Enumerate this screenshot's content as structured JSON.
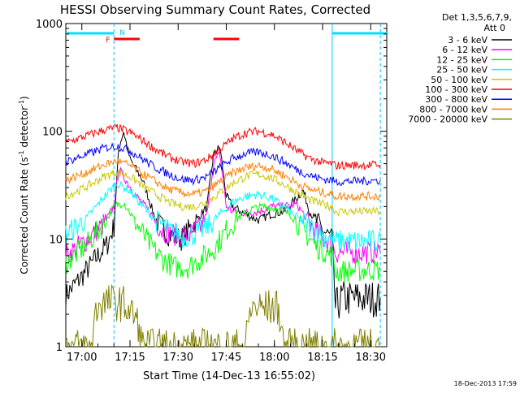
{
  "chart_data": {
    "type": "line",
    "title": "HESSI Observing Summary Count Rates, Corrected",
    "xlabel": "Start Time (14-Dec-13 16:55:02)",
    "ylabel": "Corrected Count Rate (s⁻¹ detector⁻¹)",
    "ylabel_parts": {
      "main": "Corrected Count Rate (s",
      "exp1": "-1",
      "mid": " detector",
      "exp2": "-1",
      "end": ")"
    },
    "y_scale": "log",
    "ylim": [
      1,
      1000
    ],
    "xlim_minutes": [
      0,
      100
    ],
    "x_tick_labels": [
      "17:00",
      "17:15",
      "17:30",
      "17:45",
      "18:00",
      "18:15",
      "18:30"
    ],
    "x_tick_minutes": [
      5,
      20,
      35,
      50,
      65,
      80,
      95
    ],
    "y_tick_labels": [
      "1",
      "10",
      "100",
      "1000"
    ],
    "y_tick_values": [
      1,
      10,
      100,
      1000
    ],
    "legend_header": [
      "Det 1,3,5,6,7,9,",
      "Att 0"
    ],
    "legend_position": "right",
    "timestamp": "18-Dec-2013 17:59",
    "flag_labels": {
      "F": "F",
      "N": "N"
    },
    "flag_bars": {
      "cyan": [
        [
          0,
          15
        ],
        [
          83,
          100
        ]
      ],
      "red": [
        [
          15,
          23
        ],
        [
          46,
          54
        ]
      ]
    },
    "vertical_markers_minutes": [
      15,
      83,
      98
    ],
    "series": [
      {
        "name": "3 - 6 keV",
        "color": "#000000",
        "points": [
          [
            0,
            3
          ],
          [
            5,
            4.5
          ],
          [
            10,
            7
          ],
          [
            13,
            9
          ],
          [
            15,
            13
          ],
          [
            16.5,
            70
          ],
          [
            18,
            100
          ],
          [
            20,
            55
          ],
          [
            24,
            35
          ],
          [
            28,
            15
          ],
          [
            32,
            11
          ],
          [
            36,
            10
          ],
          [
            40,
            14
          ],
          [
            44,
            20
          ],
          [
            46,
            60
          ],
          [
            48,
            72
          ],
          [
            50,
            25
          ],
          [
            52,
            20
          ],
          [
            56,
            17
          ],
          [
            60,
            15
          ],
          [
            64,
            17
          ],
          [
            68,
            18
          ],
          [
            72,
            24
          ],
          [
            74,
            28
          ],
          [
            76,
            18
          ],
          [
            80,
            12
          ],
          [
            83,
            10
          ],
          [
            84,
            2.3
          ],
          [
            86,
            2.8
          ],
          [
            98,
            2.8
          ]
        ]
      },
      {
        "name": "6 - 12 keV",
        "color": "#ff00ff",
        "points": [
          [
            0,
            7
          ],
          [
            6,
            9.5
          ],
          [
            12,
            14
          ],
          [
            15,
            20
          ],
          [
            16.5,
            45
          ],
          [
            18,
            38
          ],
          [
            22,
            25
          ],
          [
            26,
            18
          ],
          [
            30,
            12
          ],
          [
            34,
            11
          ],
          [
            38,
            10.5
          ],
          [
            42,
            13
          ],
          [
            44,
            17
          ],
          [
            46,
            50
          ],
          [
            48,
            62
          ],
          [
            50,
            20
          ],
          [
            52,
            18
          ],
          [
            56,
            17.5
          ],
          [
            60,
            18
          ],
          [
            64,
            20
          ],
          [
            68,
            20
          ],
          [
            72,
            21
          ],
          [
            76,
            14
          ],
          [
            80,
            10
          ],
          [
            83,
            9
          ],
          [
            84,
            7.5
          ],
          [
            98,
            7.5
          ]
        ]
      },
      {
        "name": "12 - 25 keV",
        "color": "#00ff00",
        "points": [
          [
            0,
            6
          ],
          [
            6,
            8.5
          ],
          [
            12,
            14
          ],
          [
            15,
            20
          ],
          [
            18,
            22
          ],
          [
            22,
            14
          ],
          [
            26,
            9
          ],
          [
            30,
            6.5
          ],
          [
            34,
            5.5
          ],
          [
            38,
            5.5
          ],
          [
            42,
            6.5
          ],
          [
            46,
            8
          ],
          [
            50,
            12
          ],
          [
            54,
            16
          ],
          [
            58,
            19
          ],
          [
            62,
            20
          ],
          [
            66,
            19
          ],
          [
            70,
            17
          ],
          [
            74,
            12
          ],
          [
            78,
            8.5
          ],
          [
            83,
            7
          ],
          [
            84,
            5
          ],
          [
            98,
            5.2
          ]
        ]
      },
      {
        "name": "25 - 50 keV",
        "color": "#00ffff",
        "points": [
          [
            0,
            11
          ],
          [
            6,
            15
          ],
          [
            12,
            25
          ],
          [
            16,
            33
          ],
          [
            20,
            28
          ],
          [
            24,
            20
          ],
          [
            28,
            15
          ],
          [
            32,
            12
          ],
          [
            36,
            10.5
          ],
          [
            40,
            11
          ],
          [
            44,
            13
          ],
          [
            48,
            17
          ],
          [
            52,
            22
          ],
          [
            56,
            25
          ],
          [
            60,
            26
          ],
          [
            64,
            24
          ],
          [
            68,
            20
          ],
          [
            72,
            16
          ],
          [
            76,
            13
          ],
          [
            80,
            11
          ],
          [
            83,
            10
          ],
          [
            84,
            9.5
          ],
          [
            98,
            9.5
          ]
        ]
      },
      {
        "name": "50 - 100 keV",
        "color": "#c8c800",
        "points": [
          [
            0,
            25
          ],
          [
            6,
            30
          ],
          [
            12,
            38
          ],
          [
            16,
            42
          ],
          [
            20,
            38
          ],
          [
            24,
            31
          ],
          [
            28,
            26
          ],
          [
            32,
            22
          ],
          [
            36,
            20
          ],
          [
            40,
            20
          ],
          [
            44,
            22
          ],
          [
            48,
            27
          ],
          [
            52,
            33
          ],
          [
            56,
            38
          ],
          [
            60,
            40
          ],
          [
            64,
            37
          ],
          [
            68,
            32
          ],
          [
            72,
            27
          ],
          [
            76,
            23
          ],
          [
            80,
            21
          ],
          [
            83,
            20
          ],
          [
            84,
            18
          ],
          [
            98,
            18
          ]
        ]
      },
      {
        "name": "100 - 300 keV",
        "color": "#ff0000",
        "points": [
          [
            0,
            78
          ],
          [
            6,
            90
          ],
          [
            12,
            103
          ],
          [
            16,
            108
          ],
          [
            20,
            98
          ],
          [
            24,
            82
          ],
          [
            28,
            68
          ],
          [
            32,
            58
          ],
          [
            36,
            52
          ],
          [
            40,
            50
          ],
          [
            44,
            55
          ],
          [
            48,
            68
          ],
          [
            52,
            85
          ],
          [
            56,
            97
          ],
          [
            60,
            100
          ],
          [
            64,
            94
          ],
          [
            68,
            80
          ],
          [
            72,
            66
          ],
          [
            76,
            56
          ],
          [
            80,
            51
          ],
          [
            83,
            50
          ],
          [
            84,
            48
          ],
          [
            98,
            49
          ]
        ]
      },
      {
        "name": "300 - 800 keV",
        "color": "#0000ff",
        "points": [
          [
            0,
            52
          ],
          [
            6,
            60
          ],
          [
            12,
            70
          ],
          [
            16,
            73
          ],
          [
            20,
            66
          ],
          [
            24,
            55
          ],
          [
            28,
            46
          ],
          [
            32,
            40
          ],
          [
            36,
            36
          ],
          [
            40,
            35
          ],
          [
            44,
            38
          ],
          [
            48,
            46
          ],
          [
            52,
            56
          ],
          [
            56,
            62
          ],
          [
            60,
            64
          ],
          [
            64,
            60
          ],
          [
            68,
            52
          ],
          [
            72,
            44
          ],
          [
            76,
            39
          ],
          [
            80,
            36
          ],
          [
            83,
            35
          ],
          [
            84,
            34
          ],
          [
            98,
            35
          ]
        ]
      },
      {
        "name": "800 - 7000 keV",
        "color": "#ff8000",
        "points": [
          [
            0,
            35
          ],
          [
            6,
            41
          ],
          [
            12,
            49
          ],
          [
            16,
            53
          ],
          [
            20,
            48
          ],
          [
            24,
            40
          ],
          [
            28,
            34
          ],
          [
            32,
            29
          ],
          [
            36,
            27
          ],
          [
            40,
            26
          ],
          [
            44,
            28
          ],
          [
            48,
            34
          ],
          [
            52,
            41
          ],
          [
            56,
            46
          ],
          [
            60,
            48
          ],
          [
            64,
            45
          ],
          [
            68,
            39
          ],
          [
            72,
            33
          ],
          [
            76,
            29
          ],
          [
            80,
            27
          ],
          [
            83,
            26
          ],
          [
            84,
            25
          ],
          [
            98,
            25
          ]
        ]
      },
      {
        "name": "7000 - 20000 keV",
        "color": "#808000",
        "points": [
          [
            0,
            1
          ],
          [
            8,
            1
          ],
          [
            9,
            1.8
          ],
          [
            10,
            2.5
          ],
          [
            14,
            2.6
          ],
          [
            18,
            2.5
          ],
          [
            22,
            1.8
          ],
          [
            24,
            1
          ],
          [
            56,
            1
          ],
          [
            57,
            1.8
          ],
          [
            58,
            2.3
          ],
          [
            66,
            2.3
          ],
          [
            67,
            1.8
          ],
          [
            68,
            1
          ],
          [
            98,
            1
          ]
        ]
      }
    ]
  }
}
